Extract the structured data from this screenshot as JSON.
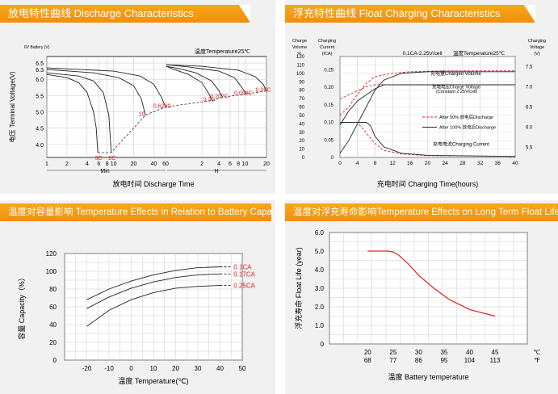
{
  "banners": {
    "discharge": "放电特性曲线 Discharge Characteristics",
    "float": "浮充特性曲线 Float Charging Characteristics",
    "capacity": "温度对容量影响 Temperature Effects in Relation to Battery Capacity",
    "life": "温度对浮充寿命影响Temperature Effects on Long Term Float Life"
  },
  "chart_data": [
    {
      "type": "line",
      "title": "放电特性曲线 Discharge Characteristics",
      "xlabel": "放电时间 Discharge Time",
      "ylabel": "电压 Terminal Voltage(V)",
      "yunit": "6V Battery (V)",
      "note": "温度Temperature25℃",
      "min_label": "Min",
      "h_label": "H",
      "ylim": [
        3.6,
        6.7
      ],
      "yticks": [
        "6.5",
        "6.3",
        "6.0",
        "5.5",
        "5.0",
        "4.5",
        "4.0"
      ],
      "xticks_min": [
        "1",
        "2",
        "4",
        "6",
        "8",
        "10",
        "20",
        "40",
        "60"
      ],
      "xticks_h": [
        "2",
        "4",
        "6",
        "8",
        "10",
        "20"
      ],
      "series": [
        {
          "name": "3C",
          "x_min": [
            1,
            2,
            3,
            4,
            5,
            5.5,
            5.8
          ],
          "y": [
            6.15,
            6.05,
            5.9,
            5.6,
            5.0,
            4.5,
            3.75
          ]
        },
        {
          "name": "2C",
          "x_min": [
            1,
            3,
            5,
            7,
            8.5,
            9.2
          ],
          "y": [
            6.2,
            6.1,
            5.95,
            5.6,
            4.9,
            3.75
          ]
        },
        {
          "name": "1C",
          "x_min": [
            1,
            5,
            12,
            20,
            26,
            30
          ],
          "y": [
            6.3,
            6.2,
            6.05,
            5.8,
            5.4,
            4.9
          ]
        },
        {
          "name": "0.628C",
          "x_min": [
            1,
            10,
            25,
            40,
            52,
            60
          ],
          "y": [
            6.35,
            6.25,
            6.1,
            5.85,
            5.45,
            5.15
          ]
        },
        {
          "name": "0.3C",
          "x_h": [
            0.02,
            0.3,
            1,
            2,
            2.6,
            3.1
          ],
          "y": [
            6.4,
            6.3,
            6.15,
            5.9,
            5.6,
            5.35
          ]
        },
        {
          "name": "0.207C",
          "x_h": [
            0.02,
            0.5,
            1.5,
            3,
            4,
            4.6
          ],
          "y": [
            6.4,
            6.33,
            6.2,
            5.95,
            5.65,
            5.45
          ]
        },
        {
          "name": "0.093C",
          "x_h": [
            0.02,
            1,
            4,
            7,
            9,
            10.5
          ],
          "y": [
            6.45,
            6.38,
            6.25,
            6.05,
            5.75,
            5.55
          ]
        },
        {
          "name": "0.05C",
          "x_h": [
            0.02,
            2,
            8,
            14,
            18,
            20
          ],
          "y": [
            6.45,
            6.4,
            6.28,
            6.08,
            5.85,
            5.65
          ]
        }
      ],
      "cutoff_curve": "dashed"
    },
    {
      "type": "line",
      "title": "浮充特性曲线 Float Charging Characteristics",
      "xlabel": "充电时间 Charging Time(hours)",
      "left_axis_1": {
        "title": [
          "Charge",
          "Volume",
          "%"
        ],
        "ticks": [
          "120",
          "110",
          "100",
          "90",
          "80",
          "70",
          "60",
          "50",
          "40",
          "30",
          "20",
          "10",
          "0"
        ]
      },
      "left_axis_2": {
        "title": [
          "Charging",
          "Current",
          "(ICA)"
        ],
        "ticks": [
          "0.25",
          "0.20",
          "0.15",
          "0.10",
          "0.05",
          "0"
        ]
      },
      "right_axis": {
        "title": [
          "Charging",
          "Voltage",
          "(V)"
        ],
        "ticks": [
          "7.5",
          "7.0",
          "6.5",
          "6.0",
          "5.5"
        ]
      },
      "xticks": [
        "0",
        "4",
        "8",
        "12",
        "16",
        "20",
        "24",
        "28",
        "32",
        "36",
        "40"
      ],
      "note_1": "0.1CA-2.25V/cell",
      "note_2": "温度Temperature25℃",
      "labels": [
        "充电量Charged Volume",
        "充电电压Charge Voltage",
        "(Constant 2.25V/cell)",
        "充电电流Charging Current"
      ],
      "legend": [
        "After 50% 放电后Discharge",
        "After 100% 放电后Discharge"
      ],
      "series": [
        {
          "name": "After 50% 放电后Discharge",
          "curve": "charge_volume",
          "x": [
            0,
            2,
            4,
            6,
            8,
            12,
            16,
            24,
            40
          ],
          "y_pct": [
            50,
            60,
            75,
            88,
            96,
            100,
            102,
            103,
            103
          ]
        },
        {
          "name": "After 100% 放电后Discharge",
          "curve": "charge_volume",
          "x": [
            0,
            2,
            4,
            6,
            8,
            10,
            14,
            20,
            40
          ],
          "y_pct": [
            5,
            20,
            40,
            60,
            80,
            92,
            100,
            102,
            102
          ]
        },
        {
          "name": "After 50% 放电后Discharge",
          "curve": "charge_voltage",
          "x": [
            0,
            2,
            4,
            6,
            8,
            12,
            20,
            40
          ],
          "y_v": [
            6.7,
            6.8,
            6.9,
            7.0,
            7.05,
            7.05,
            7.05,
            7.05
          ]
        },
        {
          "name": "After 100% 放电后Discharge",
          "curve": "charge_voltage",
          "x": [
            0,
            2,
            4,
            6,
            8,
            10,
            20,
            40
          ],
          "y_v": [
            6.05,
            6.4,
            6.65,
            6.8,
            6.95,
            7.05,
            7.05,
            7.05
          ]
        },
        {
          "name": "After 50% 放电后Discharge",
          "curve": "charging_current",
          "x": [
            0,
            4,
            6,
            8,
            10,
            14,
            20,
            40
          ],
          "y_ca": [
            0.1,
            0.1,
            0.07,
            0.04,
            0.02,
            0.01,
            0.005,
            0.003
          ]
        },
        {
          "name": "After 100% 放电后Discharge",
          "curve": "charging_current",
          "x": [
            0,
            6,
            7,
            8,
            10,
            14,
            20,
            40
          ],
          "y_ca": [
            0.1,
            0.1,
            0.09,
            0.06,
            0.03,
            0.012,
            0.006,
            0.003
          ]
        }
      ]
    },
    {
      "type": "line",
      "title": "温度对容量影响 Temperature Effects in Relation to Battery Capacity",
      "xlabel": "温度 Temperature(℃)",
      "ylabel": "容量 Capacity（%）",
      "ylim": [
        0,
        120
      ],
      "xlim": [
        -30,
        50
      ],
      "yticks": [
        "120",
        "100",
        "80",
        "60",
        "40",
        "20",
        "0"
      ],
      "xticks": [
        "-20",
        "-10",
        "0",
        "10",
        "20",
        "30",
        "40",
        "50"
      ],
      "series": [
        {
          "name": "0.1CA",
          "x": [
            -20,
            -10,
            0,
            10,
            20,
            30,
            40,
            45
          ],
          "y": [
            68,
            80,
            89,
            96,
            101,
            104,
            105,
            105
          ]
        },
        {
          "name": "0.17CA",
          "x": [
            -20,
            -10,
            0,
            10,
            20,
            30,
            40,
            45
          ],
          "y": [
            58,
            71,
            81,
            88,
            93,
            96,
            97,
            97
          ]
        },
        {
          "name": "0.25CA",
          "x": [
            -20,
            -10,
            0,
            10,
            20,
            30,
            40,
            45
          ],
          "y": [
            38,
            56,
            68,
            76,
            81,
            83,
            84,
            84
          ]
        }
      ]
    },
    {
      "type": "line",
      "title": "温度对浮充寿命影响Temperature Effects on Long Term Float Life",
      "xlabel": "温度 Battery temperature",
      "ylabel": "浮充寿命 Float Life (year)",
      "ylim": [
        0,
        6
      ],
      "yticks": [
        "6.0",
        "5.0",
        "4.0",
        "3.0",
        "2.0",
        "1.0",
        "0"
      ],
      "xticks_c": [
        "20",
        "25",
        "30",
        "35",
        "40",
        "45"
      ],
      "xticks_f": [
        "68",
        "77",
        "86",
        "95",
        "104",
        "113"
      ],
      "unit_c": "℃",
      "unit_f": "℉",
      "series": [
        {
          "name": "",
          "x": [
            20,
            24,
            25,
            26,
            28,
            30,
            33,
            36,
            40,
            45
          ],
          "y": [
            5.0,
            5.0,
            4.95,
            4.8,
            4.3,
            3.7,
            3.0,
            2.4,
            1.85,
            1.5
          ]
        }
      ]
    }
  ]
}
